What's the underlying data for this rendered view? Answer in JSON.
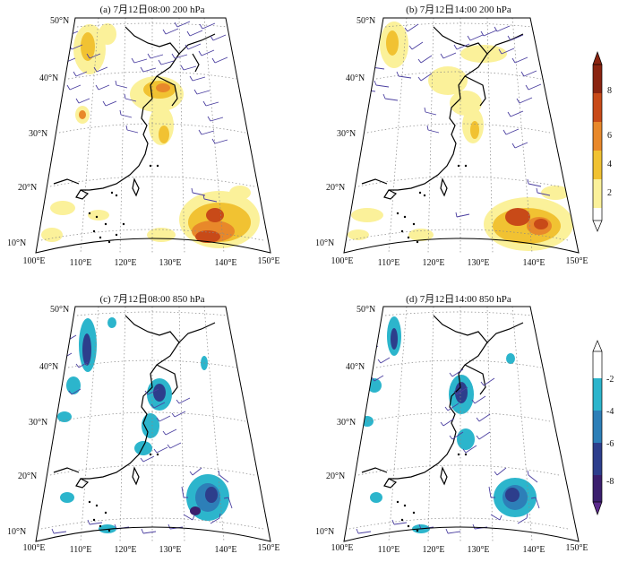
{
  "figure": {
    "panels": [
      {
        "id": "a",
        "title": "(a) 7月12日08:00  200 hPa",
        "level": "200 hPa",
        "time": "7月12日08:00"
      },
      {
        "id": "b",
        "title": "(b) 7月12日14:00  200 hPa",
        "level": "200 hPa",
        "time": "7月12日14:00"
      },
      {
        "id": "c",
        "title": "(c)  7月12日08:00  850 hPa",
        "level": "850 hPa",
        "time": "7月12日08:00"
      },
      {
        "id": "d",
        "title": "(d)  7月12日14:00  850 hPa",
        "level": "850 hPa",
        "time": "7月12日14:00"
      }
    ],
    "lat_labels": [
      "10°N",
      "20°N",
      "30°N",
      "40°N",
      "50°N"
    ],
    "lon_labels": [
      "100°E",
      "110°E",
      "120°E",
      "130°E",
      "140°E",
      "150°E"
    ],
    "colorbar_top": {
      "ticks": [
        "2",
        "4",
        "6",
        "8"
      ],
      "colors": [
        "#ffffff",
        "#fbf19a",
        "#f1c232",
        "#e8882a",
        "#c84a18",
        "#8a2410"
      ]
    },
    "colorbar_bottom": {
      "ticks": [
        "-2",
        "-4",
        "-6",
        "-8"
      ],
      "colors": [
        "#ffffff",
        "#2cb5cc",
        "#2d7fb8",
        "#2d3e8c",
        "#3b1f6e",
        "#5b2a8c"
      ]
    },
    "colors": {
      "wind_barb": "#4b3fa0",
      "coast": "#000000",
      "grid": "#888888"
    }
  }
}
